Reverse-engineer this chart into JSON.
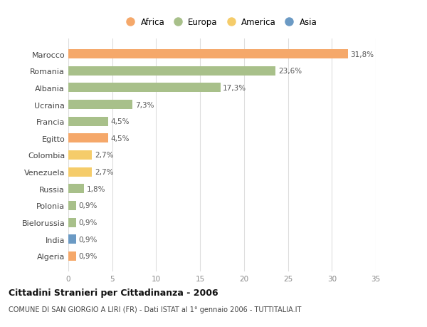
{
  "countries": [
    "Algeria",
    "India",
    "Bielorussia",
    "Polonia",
    "Russia",
    "Venezuela",
    "Colombia",
    "Egitto",
    "Francia",
    "Ucraina",
    "Albania",
    "Romania",
    "Marocco"
  ],
  "values": [
    0.9,
    0.9,
    0.9,
    0.9,
    1.8,
    2.7,
    2.7,
    4.5,
    4.5,
    7.3,
    17.3,
    23.6,
    31.8
  ],
  "labels": [
    "0,9%",
    "0,9%",
    "0,9%",
    "0,9%",
    "1,8%",
    "2,7%",
    "2,7%",
    "4,5%",
    "4,5%",
    "7,3%",
    "17,3%",
    "23,6%",
    "31,8%"
  ],
  "colors": [
    "#F5A86A",
    "#6B9AC4",
    "#A8C08A",
    "#A8C08A",
    "#A8C08A",
    "#F5CC6A",
    "#F5CC6A",
    "#F5A86A",
    "#A8C08A",
    "#A8C08A",
    "#A8C08A",
    "#A8C08A",
    "#F5A86A"
  ],
  "legend": [
    {
      "label": "Africa",
      "color": "#F5A86A"
    },
    {
      "label": "Europa",
      "color": "#A8C08A"
    },
    {
      "label": "America",
      "color": "#F5CC6A"
    },
    {
      "label": "Asia",
      "color": "#6B9AC4"
    }
  ],
  "xlim": [
    0,
    35
  ],
  "xticks": [
    0,
    5,
    10,
    15,
    20,
    25,
    30,
    35
  ],
  "title": "Cittadini Stranieri per Cittadinanza - 2006",
  "subtitle": "COMUNE DI SAN GIORGIO A LIRI (FR) - Dati ISTAT al 1° gennaio 2006 - TUTTITALIA.IT",
  "background_color": "#ffffff",
  "grid_color": "#dddddd"
}
